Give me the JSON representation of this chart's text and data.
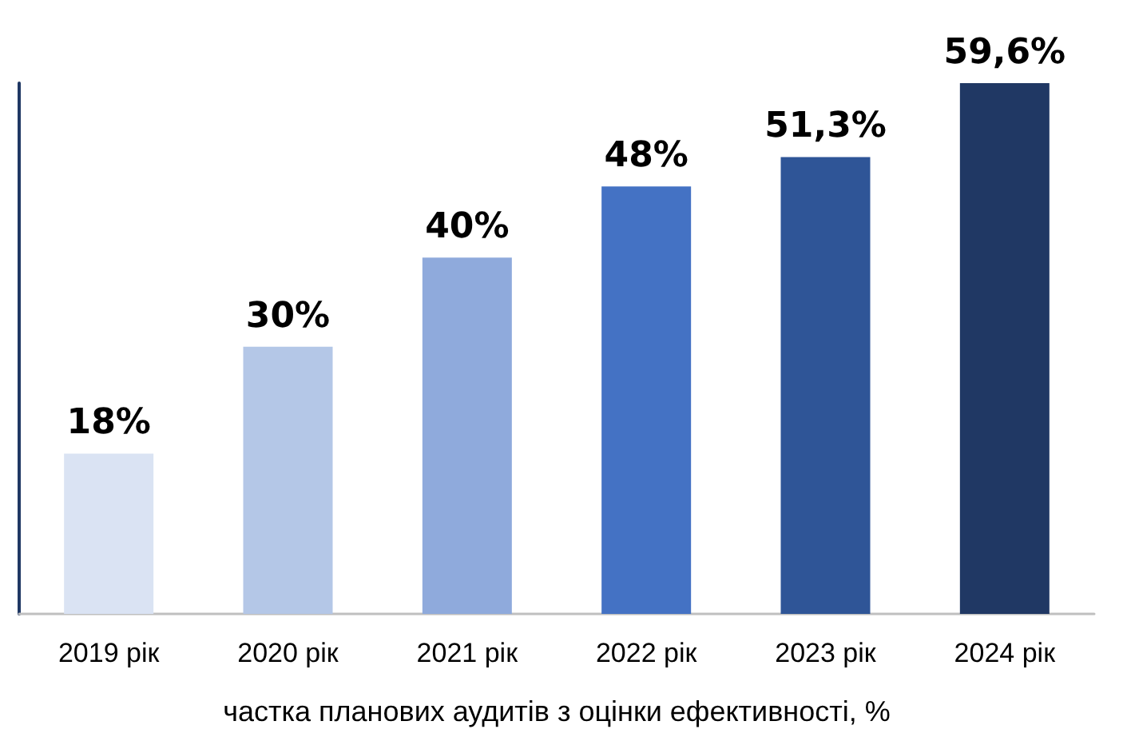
{
  "chart_data": {
    "type": "bar",
    "xlabel": "частка планових аудитів з оцінки ефективності, %",
    "categories": [
      "2019 рік",
      "2020 рік",
      "2021 рік",
      "2022 рік",
      "2023 рік",
      "2024 рік"
    ],
    "values": [
      18,
      30,
      40,
      48,
      51.3,
      59.6
    ],
    "colors": [
      "#dae3f3",
      "#b4c7e7",
      "#8faadc",
      "#4472c4",
      "#2f5597",
      "#203864"
    ],
    "value_labels": [
      "18%",
      "30%",
      "40%",
      "48%",
      "51,3%",
      "59,6%"
    ]
  }
}
